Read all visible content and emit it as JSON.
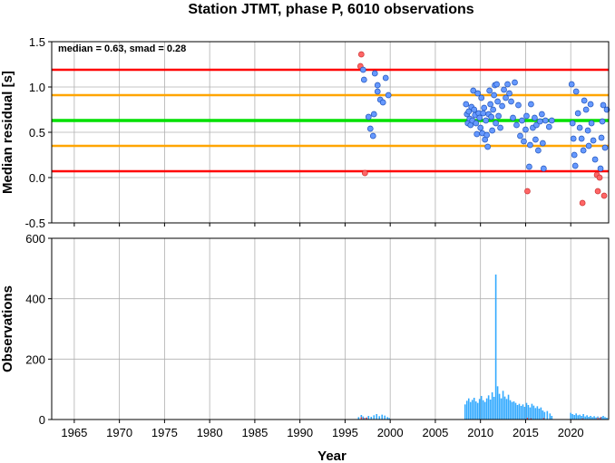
{
  "title": "Station JTMT, phase P, 6010 observations",
  "xlabel": "Year",
  "colors": {
    "frame": "#000000",
    "grid": "#b0b0b0",
    "median_line": "#00e000",
    "smad_line": "#ffa500",
    "limit_line": "#ff0000",
    "point_in": "#6699ff",
    "point_out": "#ff6666",
    "bars_main": "#33aaff",
    "bars_outlier": "#ff4444"
  },
  "chart_data": [
    {
      "type": "scatter",
      "name": "residuals",
      "ylabel": "Median residual [s]",
      "annotation": "median = 0.63, smad = 0.28",
      "xlim": [
        1962.5,
        2024.2
      ],
      "ylim": [
        -0.5,
        1.5
      ],
      "x_ticks": [
        1965,
        1970,
        1975,
        1980,
        1985,
        1990,
        1995,
        2000,
        2005,
        2010,
        2015,
        2020
      ],
      "x_tick_labels": [],
      "y_ticks": [
        -0.5,
        0.0,
        0.5,
        1.0,
        1.5
      ],
      "y_tick_labels": [
        "-0.5",
        "0.0",
        "0.5",
        "1.0",
        "1.5"
      ],
      "grid": true,
      "hlines": [
        {
          "y": 1.19,
          "role": "limit"
        },
        {
          "y": 0.91,
          "role": "smad"
        },
        {
          "y": 0.63,
          "role": "median"
        },
        {
          "y": 0.35,
          "role": "smad"
        },
        {
          "y": 0.07,
          "role": "limit"
        }
      ],
      "points": [
        [
          1996.8,
          1.36
        ],
        [
          1996.7,
          1.23
        ],
        [
          1997.0,
          1.19
        ],
        [
          1997.2,
          0.05
        ],
        [
          1997.1,
          1.08
        ],
        [
          1997.6,
          0.67
        ],
        [
          1997.8,
          0.54
        ],
        [
          1998.1,
          0.46
        ],
        [
          1998.2,
          0.7
        ],
        [
          1998.3,
          1.15
        ],
        [
          1998.6,
          0.95
        ],
        [
          1998.9,
          0.86
        ],
        [
          1998.6,
          1.02
        ],
        [
          1999.2,
          0.83
        ],
        [
          1999.5,
          1.1
        ],
        [
          1999.8,
          0.91
        ],
        [
          2008.4,
          0.81
        ],
        [
          2008.5,
          0.7
        ],
        [
          2008.6,
          0.6
        ],
        [
          2008.7,
          0.73
        ],
        [
          2008.8,
          0.65
        ],
        [
          2008.9,
          0.58
        ],
        [
          2009.0,
          0.78
        ],
        [
          2009.1,
          0.63
        ],
        [
          2009.2,
          0.96
        ],
        [
          2009.3,
          0.75
        ],
        [
          2009.4,
          0.69
        ],
        [
          2009.5,
          0.6
        ],
        [
          2009.6,
          0.48
        ],
        [
          2009.7,
          0.93
        ],
        [
          2009.8,
          0.71
        ],
        [
          2009.9,
          0.66
        ],
        [
          2010.0,
          0.55
        ],
        [
          2010.1,
          0.88
        ],
        [
          2010.2,
          0.49
        ],
        [
          2010.3,
          0.71
        ],
        [
          2010.4,
          0.77
        ],
        [
          2010.5,
          0.42
        ],
        [
          2010.6,
          0.63
        ],
        [
          2010.7,
          0.47
        ],
        [
          2010.8,
          0.34
        ],
        [
          2010.9,
          0.7
        ],
        [
          2011.0,
          0.96
        ],
        [
          2011.1,
          0.81
        ],
        [
          2011.2,
          0.67
        ],
        [
          2011.3,
          0.52
        ],
        [
          2011.4,
          0.75
        ],
        [
          2011.5,
          0.91
        ],
        [
          2011.6,
          1.02
        ],
        [
          2011.7,
          0.6
        ],
        [
          2011.8,
          1.03
        ],
        [
          2011.9,
          0.84
        ],
        [
          2012.0,
          0.68
        ],
        [
          2012.2,
          0.55
        ],
        [
          2012.4,
          0.79
        ],
        [
          2012.6,
          0.97
        ],
        [
          2012.8,
          0.88
        ],
        [
          2013.0,
          1.03
        ],
        [
          2013.2,
          0.93
        ],
        [
          2013.4,
          0.84
        ],
        [
          2013.6,
          0.66
        ],
        [
          2013.8,
          1.05
        ],
        [
          2014.0,
          0.58
        ],
        [
          2014.2,
          0.8
        ],
        [
          2014.4,
          0.46
        ],
        [
          2014.6,
          0.63
        ],
        [
          2014.8,
          0.4
        ],
        [
          2015.0,
          0.53
        ],
        [
          2015.1,
          0.68
        ],
        [
          2015.2,
          -0.15
        ],
        [
          2015.4,
          0.12
        ],
        [
          2015.5,
          0.36
        ],
        [
          2015.6,
          0.81
        ],
        [
          2015.8,
          0.55
        ],
        [
          2016.0,
          0.66
        ],
        [
          2016.1,
          0.42
        ],
        [
          2016.2,
          0.58
        ],
        [
          2016.4,
          0.3
        ],
        [
          2016.6,
          0.62
        ],
        [
          2016.8,
          0.7
        ],
        [
          2016.9,
          0.38
        ],
        [
          2017.0,
          0.1
        ],
        [
          2017.2,
          0.63
        ],
        [
          2017.6,
          0.56
        ],
        [
          2017.9,
          0.63
        ],
        [
          2020.1,
          1.03
        ],
        [
          2020.2,
          0.6
        ],
        [
          2020.3,
          0.43
        ],
        [
          2020.4,
          0.25
        ],
        [
          2020.5,
          0.13
        ],
        [
          2020.6,
          0.95
        ],
        [
          2020.8,
          0.71
        ],
        [
          2021.0,
          0.55
        ],
        [
          2021.2,
          0.43
        ],
        [
          2021.4,
          0.3
        ],
        [
          2021.5,
          0.85
        ],
        [
          2021.3,
          -0.28
        ],
        [
          2021.7,
          0.75
        ],
        [
          2021.9,
          0.52
        ],
        [
          2022.0,
          0.35
        ],
        [
          2022.2,
          0.81
        ],
        [
          2022.3,
          0.6
        ],
        [
          2022.5,
          0.41
        ],
        [
          2022.7,
          0.2
        ],
        [
          2022.9,
          0.03
        ],
        [
          2023.0,
          -0.15
        ],
        [
          2023.2,
          0.0
        ],
        [
          2023.3,
          0.1
        ],
        [
          2023.4,
          0.44
        ],
        [
          2023.5,
          0.62
        ],
        [
          2023.6,
          0.8
        ],
        [
          2023.7,
          -0.2
        ],
        [
          2023.8,
          0.33
        ],
        [
          2024.0,
          0.75
        ]
      ]
    },
    {
      "type": "bar",
      "name": "observations",
      "ylabel": "Observations",
      "xlim": [
        1962.5,
        2024.2
      ],
      "ylim": [
        0,
        600
      ],
      "x_ticks": [
        1965,
        1970,
        1975,
        1980,
        1985,
        1990,
        1995,
        2000,
        2005,
        2010,
        2015,
        2020
      ],
      "x_tick_labels": [
        "1965",
        "1970",
        "1975",
        "1980",
        "1985",
        "1990",
        "1995",
        "2000",
        "2005",
        "2010",
        "2015",
        "2020"
      ],
      "y_ticks": [
        0,
        200,
        400,
        600
      ],
      "y_tick_labels": [
        "0",
        "200",
        "400",
        "600"
      ],
      "grid": true,
      "bars": [
        [
          1996.5,
          8
        ],
        [
          1996.8,
          15
        ],
        [
          1997.0,
          10
        ],
        [
          1997.3,
          6
        ],
        [
          1997.6,
          12
        ],
        [
          1997.9,
          9
        ],
        [
          1998.2,
          14
        ],
        [
          1998.5,
          18
        ],
        [
          1998.8,
          11
        ],
        [
          1999.1,
          16
        ],
        [
          1999.4,
          13
        ],
        [
          1999.7,
          8
        ],
        [
          1999.9,
          5
        ],
        [
          2008.3,
          50
        ],
        [
          2008.5,
          62
        ],
        [
          2008.7,
          70
        ],
        [
          2008.9,
          58
        ],
        [
          2009.1,
          65
        ],
        [
          2009.3,
          72
        ],
        [
          2009.5,
          60
        ],
        [
          2009.7,
          55
        ],
        [
          2009.9,
          68
        ],
        [
          2010.1,
          78
        ],
        [
          2010.3,
          64
        ],
        [
          2010.5,
          58
        ],
        [
          2010.7,
          70
        ],
        [
          2010.9,
          80
        ],
        [
          2011.1,
          66
        ],
        [
          2011.3,
          90
        ],
        [
          2011.5,
          75
        ],
        [
          2011.7,
          480
        ],
        [
          2011.9,
          110
        ],
        [
          2012.1,
          85
        ],
        [
          2012.3,
          70
        ],
        [
          2012.5,
          95
        ],
        [
          2012.7,
          76
        ],
        [
          2012.9,
          68
        ],
        [
          2013.1,
          82
        ],
        [
          2013.3,
          64
        ],
        [
          2013.5,
          58
        ],
        [
          2013.7,
          60
        ],
        [
          2013.9,
          55
        ],
        [
          2014.1,
          48
        ],
        [
          2014.3,
          52
        ],
        [
          2014.5,
          45
        ],
        [
          2014.7,
          50
        ],
        [
          2014.9,
          42
        ],
        [
          2015.1,
          55
        ],
        [
          2015.3,
          48
        ],
        [
          2015.5,
          40
        ],
        [
          2015.7,
          52
        ],
        [
          2015.9,
          46
        ],
        [
          2016.1,
          38
        ],
        [
          2016.3,
          44
        ],
        [
          2016.5,
          36
        ],
        [
          2016.7,
          40
        ],
        [
          2016.9,
          30
        ],
        [
          2017.1,
          25
        ],
        [
          2017.4,
          28
        ],
        [
          2017.7,
          20
        ],
        [
          2017.9,
          12
        ],
        [
          2020.0,
          22
        ],
        [
          2020.2,
          18
        ],
        [
          2020.4,
          15
        ],
        [
          2020.6,
          20
        ],
        [
          2020.8,
          14
        ],
        [
          2021.0,
          16
        ],
        [
          2021.2,
          12
        ],
        [
          2021.4,
          18
        ],
        [
          2021.6,
          10
        ],
        [
          2021.8,
          14
        ],
        [
          2022.0,
          9
        ],
        [
          2022.2,
          12
        ],
        [
          2022.4,
          8
        ],
        [
          2022.6,
          11
        ],
        [
          2022.8,
          7
        ],
        [
          2023.0,
          10
        ],
        [
          2023.2,
          6
        ],
        [
          2023.4,
          9
        ],
        [
          2023.6,
          12
        ],
        [
          2023.8,
          8
        ],
        [
          2024.0,
          6
        ]
      ],
      "outlier_bars": [
        [
          1996.8,
          8
        ],
        [
          1997.1,
          5
        ],
        [
          1997.4,
          7
        ],
        [
          2015.2,
          6
        ],
        [
          2015.6,
          4
        ],
        [
          2017.0,
          5
        ],
        [
          2021.3,
          4
        ],
        [
          2023.0,
          6
        ],
        [
          2023.3,
          8
        ]
      ]
    }
  ]
}
